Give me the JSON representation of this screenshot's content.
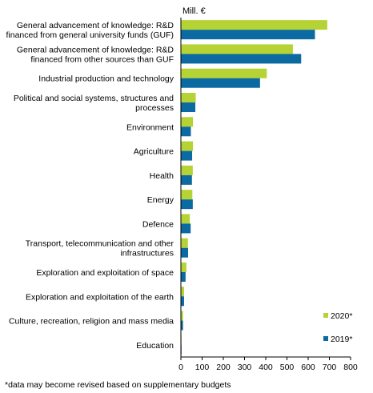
{
  "chart_data": {
    "type": "bar",
    "orientation": "horizontal",
    "unit_label": "Mill. €",
    "categories": [
      [
        "General advancement of knowledge: R&D",
        "financed from general university funds (GUF)"
      ],
      [
        "General advancement of knowledge: R&D",
        "financed from other sources than GUF"
      ],
      [
        "Industrial production and technology"
      ],
      [
        "Political and social systems, structures and",
        "processes"
      ],
      [
        "Environment"
      ],
      [
        "Agriculture"
      ],
      [
        "Health"
      ],
      [
        "Energy"
      ],
      [
        "Defence"
      ],
      [
        "Transport, telecommunication and other",
        "infrastructures"
      ],
      [
        "Exploration and exploitation of space"
      ],
      [
        "Exploration and exploitation of the earth"
      ],
      [
        "Culture, recreation, religion and mass media"
      ],
      [
        "Education"
      ]
    ],
    "series": [
      {
        "name": "2020*",
        "color": "#b5d334",
        "values": [
          690,
          528,
          405,
          70,
          57,
          57,
          56,
          54,
          42,
          33,
          26,
          15,
          10,
          3
        ]
      },
      {
        "name": "2019*",
        "color": "#0a6aa1",
        "values": [
          632,
          567,
          373,
          68,
          47,
          53,
          52,
          56,
          46,
          34,
          22,
          15,
          10,
          3
        ]
      }
    ],
    "xlim": [
      0,
      800
    ],
    "xticks": [
      0,
      100,
      200,
      300,
      400,
      500,
      600,
      700,
      800
    ],
    "grid": false,
    "legend_position": "bottom-right",
    "footnote": "*data may become revised based on supplementary budgets"
  }
}
